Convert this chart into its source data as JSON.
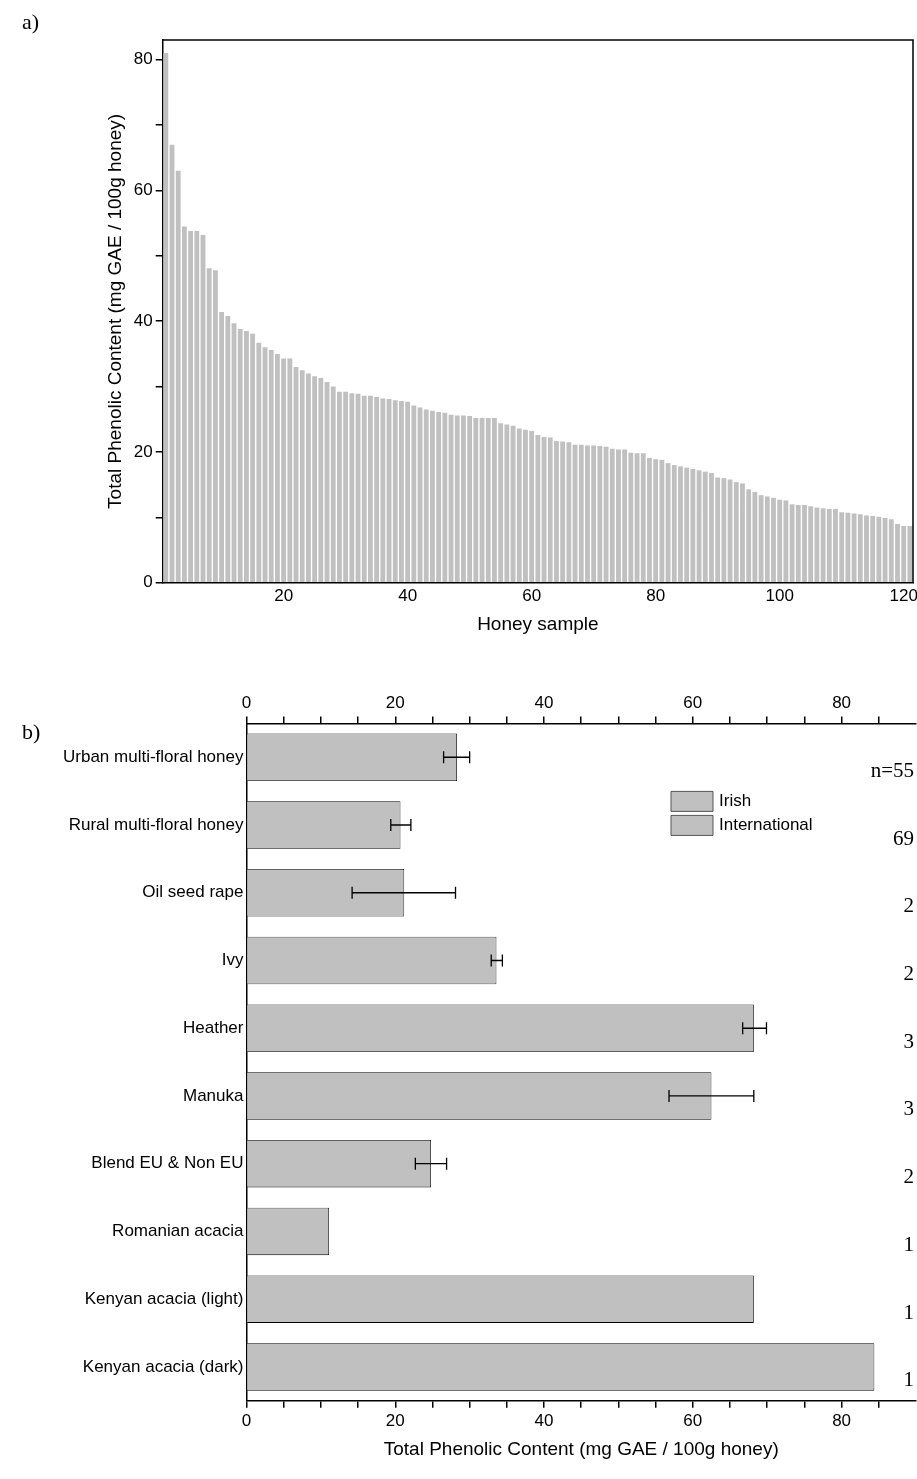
{
  "chart_data": [
    {
      "type": "bar",
      "xlabel": "Honey sample",
      "ylabel": "Total Phenolic Content (mg GAE / 100g honey)",
      "annotations": [
        "a)"
      ],
      "categories": [
        null,
        null,
        null,
        null,
        null,
        null,
        null,
        null,
        null,
        null,
        null,
        null,
        null,
        null,
        null,
        null,
        null,
        null,
        null,
        "20",
        null,
        null,
        null,
        null,
        null,
        null,
        null,
        null,
        null,
        null,
        null,
        null,
        null,
        null,
        null,
        null,
        null,
        null,
        null,
        "40",
        null,
        null,
        null,
        null,
        null,
        null,
        null,
        null,
        null,
        null,
        null,
        null,
        null,
        null,
        null,
        null,
        null,
        null,
        null,
        "60",
        null,
        null,
        null,
        null,
        null,
        null,
        null,
        null,
        null,
        null,
        null,
        null,
        null,
        null,
        null,
        null,
        null,
        null,
        null,
        "80",
        null,
        null,
        null,
        null,
        null,
        null,
        null,
        null,
        null,
        null,
        null,
        null,
        null,
        null,
        null,
        null,
        null,
        null,
        null,
        "100",
        null,
        null,
        null,
        null,
        null,
        null,
        null,
        null,
        null,
        null,
        null,
        null,
        null,
        null,
        null,
        null,
        null,
        null,
        null,
        "120",
        null
      ],
      "values": [
        81,
        67,
        63,
        54.5,
        53.8,
        53.8,
        53.2,
        48.1,
        47.8,
        41.4,
        40.8,
        39.7,
        38.8,
        38.5,
        38.1,
        36.7,
        36,
        35.6,
        35,
        34.3,
        34.3,
        33,
        32.5,
        32,
        31.6,
        31.3,
        30.7,
        30,
        29.2,
        29.2,
        29,
        28.9,
        28.6,
        28.6,
        28.4,
        28.2,
        28.1,
        27.9,
        27.8,
        27.7,
        27.1,
        26.8,
        26.5,
        26.3,
        26.1,
        26,
        25.7,
        25.6,
        25.6,
        25.5,
        25.2,
        25.2,
        25.2,
        25.2,
        24.4,
        24.2,
        24,
        23.6,
        23.4,
        23.2,
        22.6,
        22.3,
        22.2,
        21.7,
        21.6,
        21.5,
        21.1,
        21.1,
        21,
        21,
        20.9,
        20.8,
        20.5,
        20.4,
        20.4,
        19.9,
        19.8,
        19.8,
        19.1,
        18.9,
        18.8,
        18.3,
        18,
        17.8,
        17.6,
        17.4,
        17.2,
        17,
        16.8,
        16.1,
        16,
        15.8,
        15.4,
        15.2,
        14.3,
        13.9,
        13.4,
        13.2,
        13,
        12.7,
        12.6,
        12,
        11.9,
        11.9,
        11.7,
        11.5,
        11.4,
        11.3,
        11.3,
        10.8,
        10.7,
        10.6,
        10.5,
        10.3,
        10.2,
        10.1,
        9.9,
        9.7,
        9,
        8.7,
        8.7
      ],
      "color": "#c0c0c0",
      "ylim": [
        0,
        83
      ],
      "yticks": [
        0,
        {
          "value": 10,
          "label": null
        },
        20,
        {
          "value": 30,
          "label": null
        },
        40,
        {
          "value": 50,
          "label": null
        },
        60,
        {
          "value": 70,
          "label": null
        },
        80
      ]
    },
    {
      "type": "bar",
      "orientation": "horizontal",
      "xlabel": "Total Phenolic Content (mg GAE / 100g honey)",
      "annotations": [
        "b)",
        "n=55",
        "69",
        "2",
        "2",
        "3",
        "3",
        "2",
        "1",
        "1",
        "1"
      ],
      "categories": [
        "Urban multi-floral honey",
        "Rural multi-floral honey",
        "Oil seed rape",
        "Ivy",
        "Heather",
        "Manuka",
        "Blend EU & Non EU",
        "Romanian acacia",
        "Kenyan acacia (light)",
        "Kenyan acacia (dark)"
      ],
      "series": [
        {
          "name": "Irish",
          "color": "#c0c0c0",
          "values": [
            28.3,
            20.7,
            21.2,
            33.6,
            68.2,
            null,
            null,
            null,
            null,
            null
          ],
          "errors": [
            [
              26.5,
              30.0
            ],
            [
              19.4,
              22.1
            ],
            [
              14.2,
              28.1
            ],
            [
              32.9,
              34.4
            ],
            [
              66.7,
              69.9
            ],
            null,
            null,
            null,
            null,
            null
          ]
        },
        {
          "name": "International",
          "color": "#c0c0c0",
          "values": [
            null,
            null,
            null,
            null,
            null,
            62.5,
            24.8,
            11.1,
            68.2,
            84.4
          ],
          "errors": [
            null,
            null,
            null,
            null,
            null,
            [
              56.8,
              68.2
            ],
            [
              22.7,
              26.9
            ],
            null,
            null,
            null
          ]
        }
      ],
      "xlim": [
        0,
        90
      ],
      "xticks": [
        0,
        {
          "value": 5,
          "label": null
        },
        {
          "value": 10,
          "label": null
        },
        {
          "value": 15,
          "label": null
        },
        20,
        {
          "value": 25,
          "label": null
        },
        {
          "value": 30,
          "label": null
        },
        {
          "value": 35,
          "label": null
        },
        40,
        {
          "value": 45,
          "label": null
        },
        {
          "value": 50,
          "label": null
        },
        {
          "value": 55,
          "label": null
        },
        60,
        {
          "value": 65,
          "label": null
        },
        {
          "value": 70,
          "label": null
        },
        {
          "value": 75,
          "label": null
        },
        80,
        {
          "value": 85,
          "label": null
        }
      ],
      "x2lim": [
        0,
        90
      ],
      "x2ticks": [
        0,
        {
          "value": 5,
          "label": null
        },
        {
          "value": 10,
          "label": null
        },
        {
          "value": 15,
          "label": null
        },
        20,
        {
          "value": 25,
          "label": null
        },
        {
          "value": 30,
          "label": null
        },
        {
          "value": 35,
          "label": null
        },
        40,
        {
          "value": 45,
          "label": null
        },
        {
          "value": 50,
          "label": null
        },
        {
          "value": 55,
          "label": null
        },
        60,
        {
          "value": 65,
          "label": null
        },
        {
          "value": 70,
          "label": null
        },
        {
          "value": 75,
          "label": null
        },
        80,
        {
          "value": 85,
          "label": null
        }
      ],
      "legend": "top right"
    }
  ]
}
